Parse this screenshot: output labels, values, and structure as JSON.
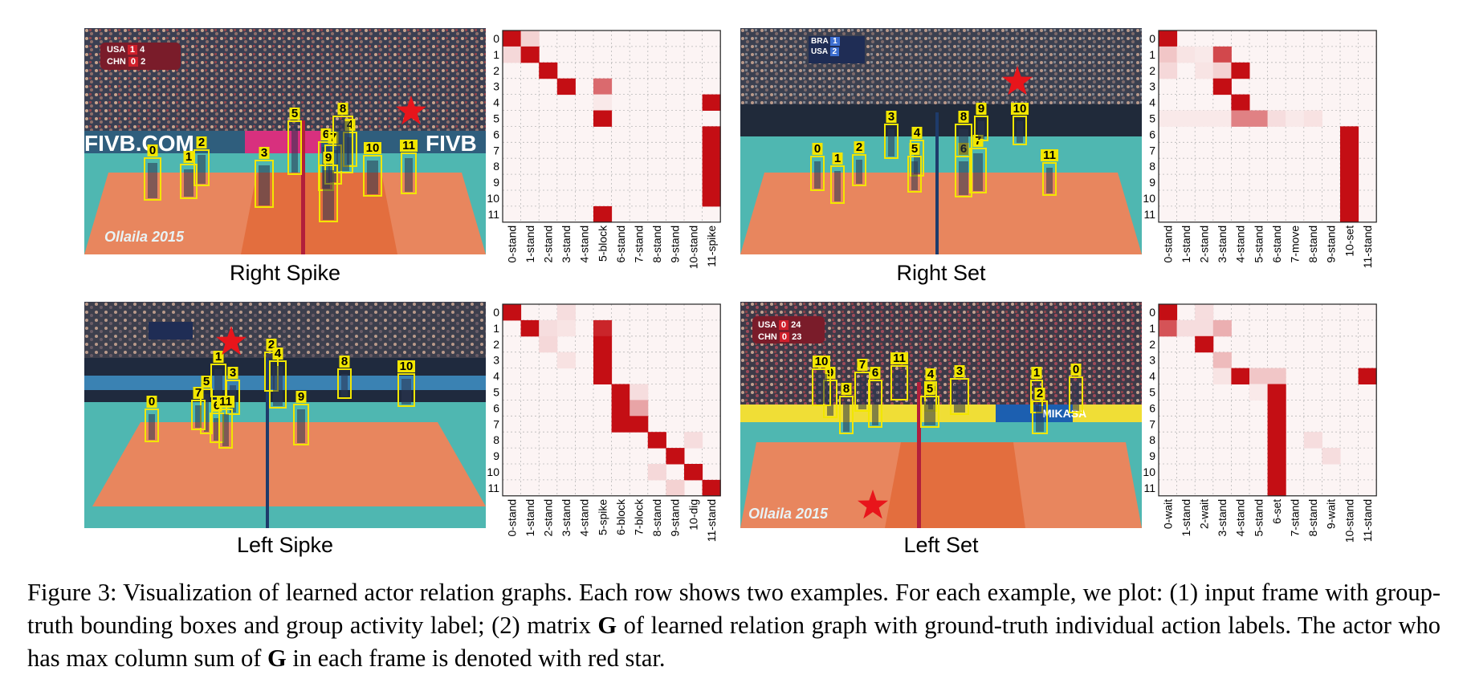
{
  "figure": {
    "caption_parts": [
      "Figure 3: Visualization of learned actor relation graphs. Each row shows two examples. For each example, we plot: (1) input frame with group-truth bounding boxes and group activity label; (2) matrix ",
      "G",
      " of learned relation graph with ground-truth individual action labels. The actor who has max column sum of ",
      "G",
      " in each frame is denoted with red star."
    ]
  },
  "colors": {
    "court_orange": "#e8865e",
    "court_teal": "#4fb7b1",
    "box_yellow": "#f2e600",
    "star_red": "#e8151b",
    "matrix_red": "#c40e14"
  },
  "panels": [
    {
      "label": "Right Spike",
      "scoreboard": [
        {
          "team": "USA",
          "sets": "1",
          "points": "4"
        },
        {
          "team": "CHN",
          "sets": "0",
          "points": "2"
        }
      ],
      "banner_left": "FIVB.COM",
      "banner_right": "FIVB",
      "watermark": "Ollaila 2015",
      "players": [
        "0",
        "1",
        "2",
        "3",
        "4",
        "5",
        "6",
        "7",
        "8",
        "9",
        "10",
        "11"
      ],
      "matrix": {
        "y_labels": [
          "0",
          "1",
          "2",
          "3",
          "4",
          "5",
          "6",
          "7",
          "8",
          "9",
          "10",
          "11"
        ],
        "x_labels": [
          "0-stand",
          "1-stand",
          "2-stand",
          "3-stand",
          "4-stand",
          "5-block",
          "6-stand",
          "7-stand",
          "8-stand",
          "9-stand",
          "10-stand",
          "11-spike"
        ],
        "cells": [
          [
            0,
            0,
            1.0
          ],
          [
            0,
            1,
            0.15
          ],
          [
            1,
            0,
            0.12
          ],
          [
            1,
            1,
            1.0
          ],
          [
            2,
            2,
            1.0
          ],
          [
            3,
            3,
            1.0
          ],
          [
            3,
            5,
            0.6
          ],
          [
            4,
            5,
            0.05
          ],
          [
            5,
            5,
            1.0
          ],
          [
            11,
            5,
            1.0
          ],
          [
            4,
            11,
            1.0
          ],
          [
            6,
            11,
            1.0
          ],
          [
            7,
            11,
            1.0
          ],
          [
            8,
            11,
            1.0
          ],
          [
            9,
            11,
            1.0
          ],
          [
            10,
            11,
            1.0
          ]
        ]
      }
    },
    {
      "label": "Right Set",
      "scoreboard": [
        {
          "team": "BRA",
          "sets": "1",
          "points": ""
        },
        {
          "team": "USA",
          "sets": "2",
          "points": ""
        }
      ],
      "banner_left": "",
      "banner_right": "",
      "watermark": "",
      "players": [
        "0",
        "1",
        "2",
        "3",
        "4",
        "5",
        "6",
        "7",
        "8",
        "9",
        "10",
        "11"
      ],
      "matrix": {
        "y_labels": [
          "0",
          "1",
          "2",
          "3",
          "4",
          "5",
          "6",
          "7",
          "8",
          "9",
          "10",
          "11"
        ],
        "x_labels": [
          "0-stand",
          "1-stand",
          "2-stand",
          "3-stand",
          "4-stand",
          "5-stand",
          "6-stand",
          "7-move",
          "8-stand",
          "9-stand",
          "10-set",
          "11-stand"
        ],
        "cells": [
          [
            0,
            0,
            1.0
          ],
          [
            1,
            0,
            0.2
          ],
          [
            1,
            1,
            0.07
          ],
          [
            1,
            2,
            0.05
          ],
          [
            1,
            3,
            0.75
          ],
          [
            2,
            0,
            0.12
          ],
          [
            2,
            2,
            0.07
          ],
          [
            2,
            3,
            0.15
          ],
          [
            2,
            4,
            1.0
          ],
          [
            3,
            3,
            1.0
          ],
          [
            4,
            4,
            1.0
          ],
          [
            5,
            0,
            0.05
          ],
          [
            5,
            1,
            0.05
          ],
          [
            5,
            2,
            0.05
          ],
          [
            5,
            3,
            0.05
          ],
          [
            5,
            4,
            0.5
          ],
          [
            5,
            5,
            0.5
          ],
          [
            5,
            6,
            0.1
          ],
          [
            5,
            7,
            0.05
          ],
          [
            5,
            8,
            0.08
          ],
          [
            6,
            10,
            1.0
          ],
          [
            7,
            10,
            1.0
          ],
          [
            8,
            10,
            1.0
          ],
          [
            9,
            10,
            1.0
          ],
          [
            10,
            10,
            1.0
          ],
          [
            11,
            10,
            1.0
          ]
        ]
      }
    },
    {
      "label": "Left Sipke",
      "scoreboard": [],
      "banner_left": "",
      "banner_right": "",
      "watermark": "",
      "players": [
        "0",
        "1",
        "2",
        "3",
        "4",
        "5",
        "6",
        "7",
        "8",
        "9",
        "10",
        "11"
      ],
      "matrix": {
        "y_labels": [
          "0",
          "1",
          "2",
          "3",
          "4",
          "5",
          "6",
          "7",
          "8",
          "9",
          "10",
          "11"
        ],
        "x_labels": [
          "0-stand",
          "1-stand",
          "2-stand",
          "3-stand",
          "4-stand",
          "5-spike",
          "6-block",
          "7-block",
          "8-stand",
          "9-stand",
          "10-dig",
          "11-stand"
        ],
        "cells": [
          [
            0,
            0,
            1.0
          ],
          [
            0,
            3,
            0.1
          ],
          [
            1,
            1,
            1.0
          ],
          [
            1,
            2,
            0.1
          ],
          [
            1,
            3,
            0.07
          ],
          [
            1,
            5,
            0.9
          ],
          [
            2,
            2,
            0.12
          ],
          [
            2,
            5,
            1.0
          ],
          [
            3,
            3,
            0.08
          ],
          [
            3,
            5,
            1.0
          ],
          [
            4,
            5,
            1.0
          ],
          [
            5,
            6,
            1.0
          ],
          [
            5,
            7,
            0.1
          ],
          [
            6,
            6,
            1.0
          ],
          [
            6,
            7,
            0.35
          ],
          [
            7,
            6,
            1.0
          ],
          [
            7,
            7,
            1.0
          ],
          [
            8,
            8,
            1.0
          ],
          [
            8,
            10,
            0.1
          ],
          [
            9,
            9,
            1.0
          ],
          [
            10,
            8,
            0.12
          ],
          [
            10,
            10,
            1.0
          ],
          [
            11,
            9,
            0.15
          ],
          [
            11,
            11,
            1.0
          ]
        ]
      }
    },
    {
      "label": "Left Set",
      "scoreboard": [
        {
          "team": "USA",
          "sets": "0",
          "points": "24"
        },
        {
          "team": "CHN",
          "sets": "0",
          "points": "23"
        }
      ],
      "banner_left": "",
      "banner_right": "MIKASA",
      "watermark": "Ollaila 2015",
      "players": [
        "0",
        "1",
        "2",
        "3",
        "4",
        "5",
        "6",
        "7",
        "8",
        "9",
        "10",
        "11"
      ],
      "matrix": {
        "y_labels": [
          "0",
          "1",
          "2",
          "3",
          "4",
          "5",
          "6",
          "7",
          "8",
          "9",
          "10",
          "11"
        ],
        "x_labels": [
          "0-wait",
          "1-stand",
          "2-wait",
          "3-stand",
          "4-stand",
          "5-stand",
          "6-set",
          "7-stand",
          "8-stand",
          "9-wait",
          "10-stand",
          "11-stand"
        ],
        "cells": [
          [
            0,
            0,
            1.0
          ],
          [
            0,
            2,
            0.1
          ],
          [
            1,
            0,
            0.7
          ],
          [
            1,
            1,
            0.1
          ],
          [
            1,
            2,
            0.1
          ],
          [
            1,
            3,
            0.3
          ],
          [
            2,
            2,
            1.0
          ],
          [
            3,
            3,
            0.25
          ],
          [
            4,
            3,
            0.07
          ],
          [
            4,
            4,
            1.0
          ],
          [
            4,
            5,
            0.2
          ],
          [
            4,
            6,
            0.2
          ],
          [
            4,
            11,
            1.0
          ],
          [
            5,
            5,
            0.05
          ],
          [
            5,
            6,
            1.0
          ],
          [
            6,
            6,
            1.0
          ],
          [
            7,
            6,
            1.0
          ],
          [
            8,
            6,
            1.0
          ],
          [
            8,
            8,
            0.1
          ],
          [
            9,
            6,
            1.0
          ],
          [
            9,
            9,
            0.1
          ],
          [
            10,
            6,
            1.0
          ],
          [
            11,
            6,
            1.0
          ]
        ]
      }
    }
  ]
}
